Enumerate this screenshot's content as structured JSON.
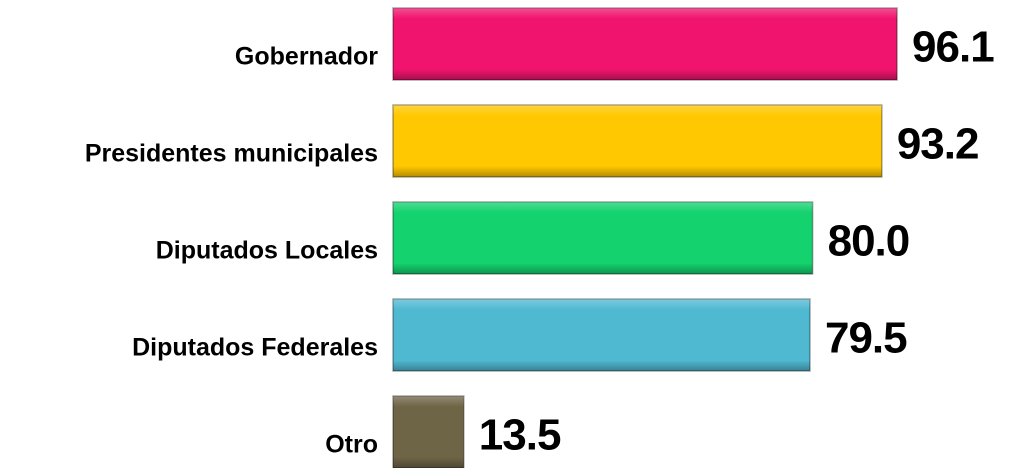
{
  "chart_data": {
    "type": "bar",
    "orientation": "horizontal",
    "categories": [
      "Gobernador",
      "Presidentes municipales",
      "Diputados Locales",
      "Diputados Federales",
      "Otro"
    ],
    "values": [
      96.1,
      93.2,
      80.0,
      79.5,
      13.5
    ],
    "value_labels": [
      "96.1",
      "93.2",
      "80.0",
      "79.5",
      "13.5"
    ],
    "colors": [
      "#f0146e",
      "#ffc800",
      "#14d26e",
      "#50b9d2",
      "#6e6446"
    ]
  }
}
